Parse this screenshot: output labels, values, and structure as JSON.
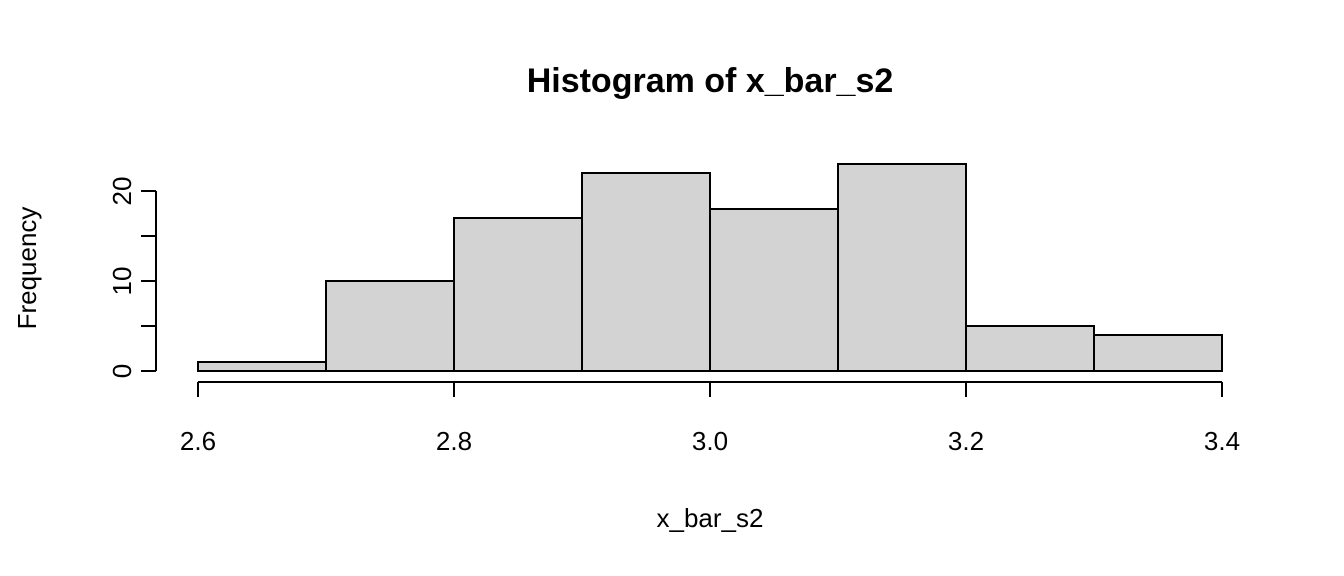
{
  "chart_data": {
    "type": "bar",
    "title": "Histogram of x_bar_s2",
    "xlabel": "x_bar_s2",
    "ylabel": "Frequency",
    "bins": [
      {
        "from": 2.6,
        "to": 2.7,
        "count": 1
      },
      {
        "from": 2.7,
        "to": 2.8,
        "count": 10
      },
      {
        "from": 2.8,
        "to": 2.9,
        "count": 17
      },
      {
        "from": 2.9,
        "to": 3.0,
        "count": 22
      },
      {
        "from": 3.0,
        "to": 3.1,
        "count": 18
      },
      {
        "from": 3.1,
        "to": 3.2,
        "count": 23
      },
      {
        "from": 3.2,
        "to": 3.3,
        "count": 5
      },
      {
        "from": 3.3,
        "to": 3.4,
        "count": 4
      }
    ],
    "xlim": [
      2.6,
      3.4
    ],
    "ylim": [
      0,
      23
    ],
    "x_ticks": [
      "2.6",
      "2.8",
      "3.0",
      "3.2",
      "3.4"
    ],
    "x_tick_values": [
      2.6,
      2.8,
      3.0,
      3.2,
      3.4
    ],
    "y_ticks": [
      0,
      5,
      10,
      15,
      20
    ],
    "y_tick_labels": [
      "0",
      "",
      "10",
      "",
      "20"
    ],
    "bar_fill": "#d3d3d3",
    "bar_stroke": "#000000",
    "grid": false,
    "legend": "none"
  }
}
